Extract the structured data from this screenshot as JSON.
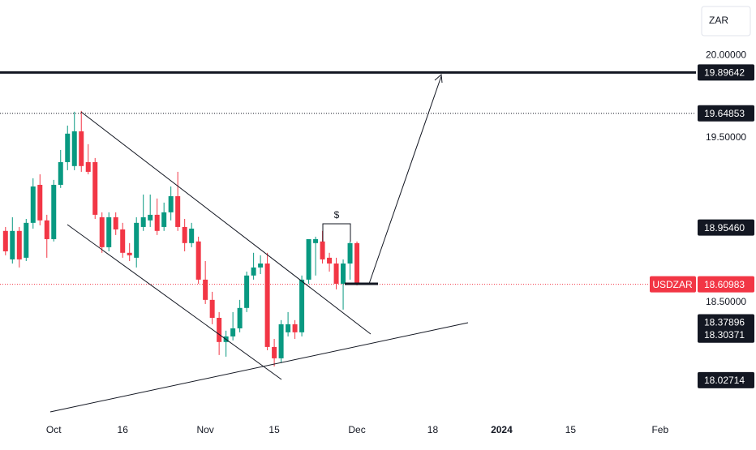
{
  "chart_data": {
    "type": "candlestick",
    "currency": "ZAR",
    "up_color": "#089981",
    "down_color": "#f23645",
    "x": [
      -7,
      -6,
      -5,
      -4,
      -3,
      -2,
      -1,
      0,
      1,
      2,
      3,
      4,
      5,
      6,
      7,
      8,
      9,
      10,
      11,
      12,
      13,
      14,
      15,
      16,
      17,
      18,
      19,
      20,
      21,
      22,
      23,
      24,
      25,
      26,
      27,
      28,
      29,
      30,
      31,
      32,
      33,
      34,
      35,
      36,
      37,
      38,
      39,
      40,
      41,
      42,
      43,
      44
    ],
    "open": [
      18.934,
      18.761,
      18.934,
      18.771,
      18.983,
      19.214,
      18.998,
      18.884,
      19.214,
      19.352,
      19.328,
      19.539,
      19.352,
      19.352,
      19.017,
      18.835,
      19.017,
      18.943,
      18.801,
      18.771,
      18.958,
      18.998,
      19.032,
      18.958,
      19.047,
      19.145,
      18.958,
      18.86,
      18.87,
      18.638,
      18.515,
      18.406,
      18.259,
      18.293,
      18.342,
      18.466,
      18.663,
      18.712,
      18.736,
      18.229,
      18.16,
      18.318,
      18.367,
      18.318,
      18.638,
      18.86,
      18.87,
      18.771,
      18.736,
      18.613,
      18.736,
      18.86
    ],
    "high": [
      18.958,
      19.017,
      18.958,
      19.007,
      19.254,
      19.278,
      19.032,
      19.244,
      19.426,
      19.574,
      19.658,
      19.663,
      19.461,
      19.377,
      19.047,
      19.047,
      19.047,
      18.983,
      18.86,
      19.017,
      19.155,
      19.155,
      19.131,
      19.106,
      19.204,
      19.293,
      19.007,
      18.983,
      18.899,
      18.751,
      18.564,
      18.441,
      18.328,
      18.441,
      18.515,
      18.687,
      18.801,
      18.786,
      18.801,
      18.278,
      18.392,
      18.441,
      18.392,
      18.663,
      18.884,
      18.899,
      18.934,
      18.801,
      18.771,
      18.761,
      18.87,
      18.87
    ],
    "low": [
      18.786,
      18.736,
      18.712,
      18.751,
      18.948,
      18.968,
      18.771,
      18.87,
      19.195,
      19.303,
      19.303,
      19.293,
      19.278,
      19.007,
      18.801,
      18.81,
      18.909,
      18.771,
      18.751,
      18.712,
      18.934,
      18.958,
      18.909,
      18.934,
      18.998,
      18.934,
      18.81,
      18.835,
      18.613,
      18.49,
      18.367,
      18.18,
      18.17,
      18.269,
      18.318,
      18.441,
      18.638,
      18.672,
      18.209,
      18.111,
      18.131,
      18.293,
      18.278,
      18.293,
      18.613,
      18.663,
      18.736,
      18.687,
      18.579,
      18.456,
      18.638,
      18.603
    ],
    "close": [
      18.81,
      18.934,
      18.761,
      18.983,
      19.204,
      18.998,
      18.884,
      19.214,
      19.352,
      19.525,
      19.539,
      19.328,
      19.293,
      19.032,
      18.835,
      19.017,
      18.943,
      18.801,
      18.786,
      18.983,
      19.017,
      19.032,
      18.934,
      19.047,
      19.145,
      18.958,
      18.86,
      18.948,
      18.638,
      18.515,
      18.406,
      18.259,
      18.293,
      18.342,
      18.466,
      18.663,
      18.712,
      18.736,
      18.229,
      18.16,
      18.367,
      18.367,
      18.318,
      18.638,
      18.884,
      18.884,
      18.761,
      18.736,
      18.613,
      18.736,
      18.86,
      18.61
    ],
    "xlim": [
      -7.8,
      93.2
    ],
    "xticks": [
      {
        "value": 0,
        "label": "Oct"
      },
      {
        "value": 10,
        "label": "16"
      },
      {
        "value": 22,
        "label": "Nov"
      },
      {
        "value": 32,
        "label": "15"
      },
      {
        "value": 44,
        "label": "Dec"
      },
      {
        "value": 55,
        "label": "18"
      },
      {
        "value": 65,
        "label": "2024"
      },
      {
        "value": 75,
        "label": "15"
      },
      {
        "value": 88,
        "label": "Feb"
      }
    ],
    "ylim": [
      17.8,
      20.337
    ],
    "yticks": [
      {
        "value": 20,
        "label": "20.00000"
      },
      {
        "value": 19.5,
        "label": "19.50000"
      },
      {
        "value": 18.5,
        "label": "18.50000"
      }
    ],
    "levels": [
      {
        "value": 19.89642,
        "style": "solid"
      },
      {
        "value": 19.64853,
        "style": "dotted"
      }
    ],
    "last_price": {
      "name": "USDZAR",
      "value": 18.60983,
      "color": "#f23645"
    },
    "price_labels": [
      19.89642,
      19.64853,
      {
        "value": 18.9546,
        "label": "18.95460"
      },
      18.37896,
      18.30371,
      18.02714
    ],
    "annotation": "$"
  }
}
